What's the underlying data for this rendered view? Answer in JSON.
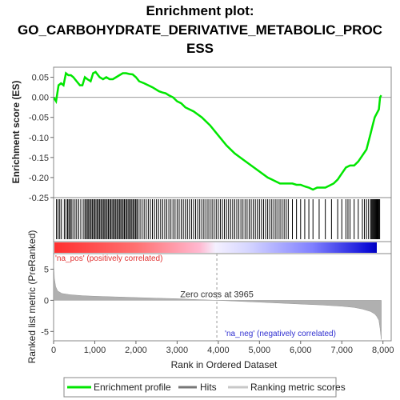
{
  "title_lines": [
    "Enrichment plot:",
    "GO_CARBOHYDRATE_DERIVATIVE_METABOLIC_PROC",
    "ESS"
  ],
  "chart_data": [
    {
      "type": "line",
      "panel": "enrichment",
      "ylabel": "Enrichment score (ES)",
      "ylim": [
        -0.25,
        0.075
      ],
      "yticks": [
        0.05,
        0.0,
        -0.05,
        -0.1,
        -0.15,
        -0.2,
        -0.25
      ],
      "ytick_labels": [
        "0.05",
        "0.00",
        "-0.05",
        "-0.10",
        "-0.15",
        "-0.20",
        "-0.25"
      ],
      "xlim": [
        0,
        8200
      ],
      "series": [
        {
          "name": "Enrichment profile",
          "color": "#00e600",
          "x": [
            0,
            60,
            120,
            180,
            240,
            300,
            360,
            420,
            480,
            560,
            640,
            700,
            760,
            820,
            900,
            960,
            1020,
            1080,
            1120,
            1200,
            1280,
            1360,
            1440,
            1520,
            1600,
            1680,
            1760,
            1840,
            1920,
            2000,
            2080,
            2200,
            2300,
            2400,
            2480,
            2560,
            2640,
            2720,
            2800,
            2900,
            3000,
            3100,
            3200,
            3400,
            3600,
            3800,
            4000,
            4200,
            4400,
            4600,
            4800,
            5000,
            5200,
            5300,
            5400,
            5500,
            5600,
            5700,
            5800,
            5900,
            6000,
            6100,
            6200,
            6300,
            6400,
            6500,
            6600,
            6700,
            6800,
            6900,
            7000,
            7100,
            7200,
            7300,
            7400,
            7500,
            7600,
            7650,
            7700,
            7750,
            7800,
            7850,
            7900,
            7930,
            7960
          ],
          "y": [
            0.0,
            -0.01,
            0.03,
            0.035,
            0.03,
            0.06,
            0.055,
            0.055,
            0.05,
            0.04,
            0.03,
            0.03,
            0.05,
            0.045,
            0.04,
            0.06,
            0.063,
            0.055,
            0.05,
            0.045,
            0.05,
            0.045,
            0.045,
            0.05,
            0.055,
            0.06,
            0.06,
            0.058,
            0.057,
            0.05,
            0.04,
            0.035,
            0.03,
            0.025,
            0.02,
            0.015,
            0.012,
            0.01,
            0.005,
            0.0,
            -0.01,
            -0.015,
            -0.025,
            -0.035,
            -0.05,
            -0.07,
            -0.095,
            -0.12,
            -0.14,
            -0.155,
            -0.17,
            -0.185,
            -0.2,
            -0.205,
            -0.21,
            -0.215,
            -0.215,
            -0.215,
            -0.215,
            -0.218,
            -0.218,
            -0.222,
            -0.225,
            -0.23,
            -0.225,
            -0.225,
            -0.225,
            -0.22,
            -0.215,
            -0.205,
            -0.19,
            -0.175,
            -0.17,
            -0.17,
            -0.16,
            -0.145,
            -0.13,
            -0.11,
            -0.09,
            -0.07,
            -0.05,
            -0.04,
            -0.03,
            0.0,
            0.005
          ]
        }
      ]
    },
    {
      "type": "hits",
      "panel": "hits",
      "legend_name": "Hits",
      "hit_positions": [
        70,
        110,
        150,
        190,
        260,
        300,
        340,
        370,
        400,
        430,
        470,
        520,
        560,
        610,
        660,
        720,
        760,
        790,
        820,
        850,
        880,
        910,
        940,
        970,
        1000,
        1030,
        1060,
        1090,
        1120,
        1150,
        1180,
        1210,
        1240,
        1270,
        1300,
        1330,
        1360,
        1390,
        1420,
        1450,
        1480,
        1510,
        1540,
        1570,
        1600,
        1630,
        1660,
        1690,
        1720,
        1750,
        1780,
        1810,
        1840,
        1870,
        1900,
        1930,
        1960,
        1990,
        2020,
        2050,
        2100,
        2150,
        2200,
        2250,
        2300,
        2350,
        2400,
        2450,
        2500,
        2550,
        2600,
        2650,
        2700,
        2750,
        2800,
        2850,
        2900,
        2950,
        3000,
        3050,
        3100,
        3150,
        3200,
        3250,
        3300,
        3350,
        3400,
        3450,
        3500,
        3550,
        3600,
        3650,
        3700,
        3750,
        3800,
        3850,
        3900,
        3950,
        4000,
        4050,
        4100,
        4150,
        4200,
        4250,
        4300,
        4350,
        4400,
        4450,
        4500,
        4550,
        4600,
        4650,
        4700,
        4750,
        4800,
        4850,
        4900,
        4950,
        5000,
        5050,
        5100,
        5150,
        5200,
        5250,
        5300,
        5350,
        5400,
        5450,
        5500,
        5550,
        5600,
        5650,
        5700,
        5800,
        5900,
        6000,
        6100,
        6200,
        6300,
        6450,
        6600,
        6750,
        6900,
        7000,
        7100,
        7150,
        7200,
        7300,
        7400,
        7500,
        7550,
        7600,
        7650,
        7700,
        7720,
        7740,
        7760,
        7780,
        7800,
        7820,
        7840,
        7860,
        7880,
        7900,
        7920
      ]
    },
    {
      "type": "area",
      "panel": "ranked_list",
      "ylabel": "Ranked list metric (PreRanked)",
      "xlabel": "Rank in Ordered Dataset",
      "legend_name": "Ranking metric scores",
      "ylim": [
        -6.5,
        7.5
      ],
      "yticks": [
        5,
        0,
        -5
      ],
      "ytick_labels": [
        "5",
        "0",
        "-5"
      ],
      "xlim": [
        0,
        8200
      ],
      "xticks": [
        0,
        1000,
        2000,
        3000,
        4000,
        5000,
        6000,
        7000,
        8000
      ],
      "xtick_labels": [
        "0",
        "1,000",
        "2,000",
        "3,000",
        "4,000",
        "5,000",
        "6,000",
        "7,000",
        "8,000"
      ],
      "fill_color": "#b0b0b0",
      "x": [
        0,
        20,
        50,
        100,
        200,
        400,
        700,
        1000,
        1500,
        2000,
        2500,
        3000,
        3500,
        3965,
        4500,
        5000,
        5500,
        6000,
        6500,
        7000,
        7300,
        7500,
        7700,
        7800,
        7850,
        7900,
        7930,
        7960
      ],
      "y": [
        6.0,
        3.5,
        2.2,
        1.5,
        1.1,
        0.9,
        0.75,
        0.65,
        0.55,
        0.45,
        0.35,
        0.25,
        0.12,
        0.0,
        -0.15,
        -0.3,
        -0.45,
        -0.6,
        -0.75,
        -0.95,
        -1.15,
        -1.4,
        -1.8,
        -2.2,
        -2.6,
        -3.2,
        -4.5,
        -6.3
      ],
      "annotations": {
        "zero_cross": "Zero cross at 3965",
        "zero_cross_rank": 3965,
        "pos_label": "'na_pos' (positively correlated)",
        "neg_label": "'na_neg' (negatively correlated)"
      }
    }
  ],
  "legend": {
    "items": [
      {
        "label": "Enrichment profile",
        "color": "#00e600"
      },
      {
        "label": "Hits",
        "color": "#777777"
      },
      {
        "label": "Ranking metric scores",
        "color": "#c8c8c8"
      }
    ]
  },
  "colors": {
    "profile": "#00e600",
    "hit": "#000000",
    "pos_label": "#e03030",
    "neg_label": "#3030d0",
    "zero_line": "#a0a0a0"
  }
}
